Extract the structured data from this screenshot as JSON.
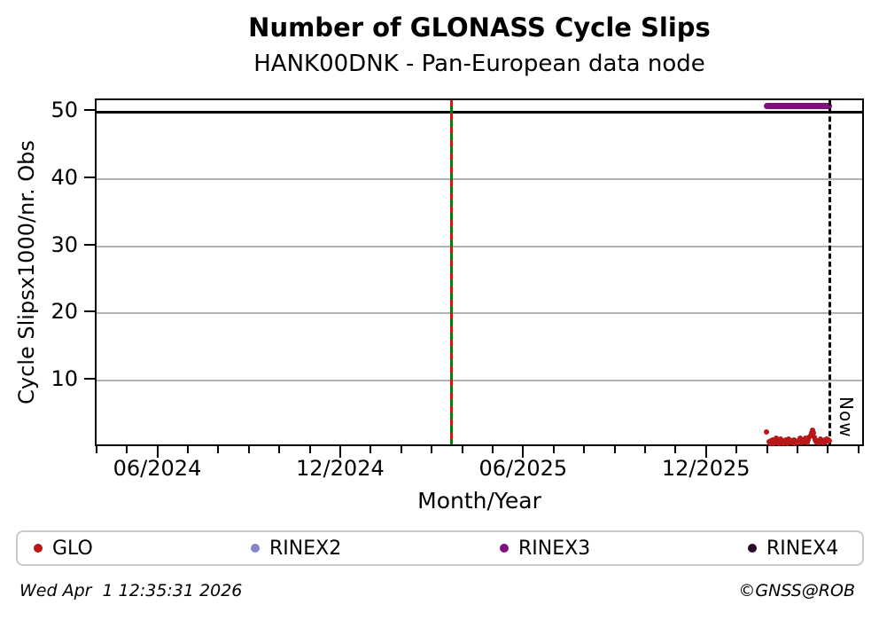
{
  "title": "Number of GLONASS Cycle Slips",
  "subtitle": "HANK00DNK - Pan-European data node",
  "footer": {
    "timestamp": "Wed Apr  1 12:35:31 2026",
    "copyright": "©GNSS@ROB"
  },
  "chart_data": {
    "type": "scatter",
    "title": "Number of GLONASS Cycle Slips",
    "subtitle": "HANK00DNK - Pan-European data node",
    "xlabel": "Month/Year",
    "ylabel": "Cycle Slipsx1000/nr. Obs",
    "ylim": [
      0,
      51.8
    ],
    "y_ticks": [
      10,
      20,
      30,
      40,
      50
    ],
    "grid": "horizontal-only",
    "threshold_line_y": 50,
    "x_axis": {
      "start": "2024-04-01",
      "end": "2026-05-01",
      "minor_tick_interval_months": 1,
      "major_ticks": [
        {
          "label": "06/2024",
          "date": "2024-06-01"
        },
        {
          "label": "12/2024",
          "date": "2024-12-01"
        },
        {
          "label": "06/2025",
          "date": "2025-06-01"
        },
        {
          "label": "12/2025",
          "date": "2025-12-01"
        }
      ]
    },
    "event_line": {
      "date": "2025-03-19",
      "name": "receiver-antenna-change",
      "line_color": "#008000",
      "dash_color": "#e01010"
    },
    "now_line": {
      "date": "2026-04-01",
      "label": "Now"
    },
    "legend_position": "bottom",
    "series": [
      {
        "name": "GLO",
        "color": "#b81818",
        "style": "scatter",
        "points": [
          [
            "2026-01-29",
            2.4
          ],
          [
            "2026-02-01",
            0.9
          ],
          [
            "2026-02-02",
            0.7
          ],
          [
            "2026-02-03",
            1.1
          ],
          [
            "2026-02-04",
            0.8
          ],
          [
            "2026-02-05",
            1.2
          ],
          [
            "2026-02-06",
            0.6
          ],
          [
            "2026-02-07",
            1.0
          ],
          [
            "2026-02-08",
            1.4
          ],
          [
            "2026-02-09",
            0.8
          ],
          [
            "2026-02-10",
            1.1
          ],
          [
            "2026-02-11",
            0.7
          ],
          [
            "2026-02-12",
            1.0
          ],
          [
            "2026-02-13",
            1.3
          ],
          [
            "2026-02-14",
            0.9
          ],
          [
            "2026-02-15",
            0.6
          ],
          [
            "2026-02-16",
            1.1
          ],
          [
            "2026-02-17",
            0.8
          ],
          [
            "2026-02-18",
            1.2
          ],
          [
            "2026-02-19",
            1.0
          ],
          [
            "2026-02-20",
            0.7
          ],
          [
            "2026-02-21",
            1.3
          ],
          [
            "2026-02-22",
            0.9
          ],
          [
            "2026-02-23",
            1.1
          ],
          [
            "2026-02-24",
            0.8
          ],
          [
            "2026-02-25",
            1.0
          ],
          [
            "2026-02-26",
            1.2
          ],
          [
            "2026-02-27",
            0.7
          ],
          [
            "2026-02-28",
            1.0
          ],
          [
            "2026-03-01",
            0.9
          ],
          [
            "2026-03-02",
            1.4
          ],
          [
            "2026-03-03",
            1.0
          ],
          [
            "2026-03-04",
            0.8
          ],
          [
            "2026-03-05",
            1.2
          ],
          [
            "2026-03-06",
            0.9
          ],
          [
            "2026-03-07",
            1.5
          ],
          [
            "2026-03-08",
            1.1
          ],
          [
            "2026-03-09",
            0.8
          ],
          [
            "2026-03-10",
            1.2
          ],
          [
            "2026-03-11",
            1.6
          ],
          [
            "2026-03-12",
            1.9
          ],
          [
            "2026-03-13",
            2.3
          ],
          [
            "2026-03-14",
            2.7
          ],
          [
            "2026-03-15",
            2.2
          ],
          [
            "2026-03-16",
            1.6
          ],
          [
            "2026-03-17",
            1.2
          ],
          [
            "2026-03-18",
            0.9
          ],
          [
            "2026-03-19",
            1.1
          ],
          [
            "2026-03-20",
            0.8
          ],
          [
            "2026-03-21",
            1.0
          ],
          [
            "2026-03-22",
            1.3
          ],
          [
            "2026-03-23",
            0.9
          ],
          [
            "2026-03-24",
            1.1
          ],
          [
            "2026-03-25",
            0.8
          ],
          [
            "2026-03-26",
            1.2
          ],
          [
            "2026-03-27",
            0.9
          ],
          [
            "2026-03-28",
            1.3
          ],
          [
            "2026-03-29",
            1.0
          ],
          [
            "2026-03-30",
            1.2
          ],
          [
            "2026-03-31",
            1.0
          ]
        ]
      },
      {
        "name": "RINEX2",
        "color": "#8585cc",
        "style": "scatter",
        "points": []
      },
      {
        "name": "RINEX3",
        "color": "#7d107d",
        "style": "band",
        "plotted_at": 50.8,
        "span": [
          "2026-01-29",
          "2026-03-31"
        ]
      },
      {
        "name": "RINEX4",
        "color": "#2b092b",
        "style": "scatter",
        "points": []
      }
    ]
  }
}
